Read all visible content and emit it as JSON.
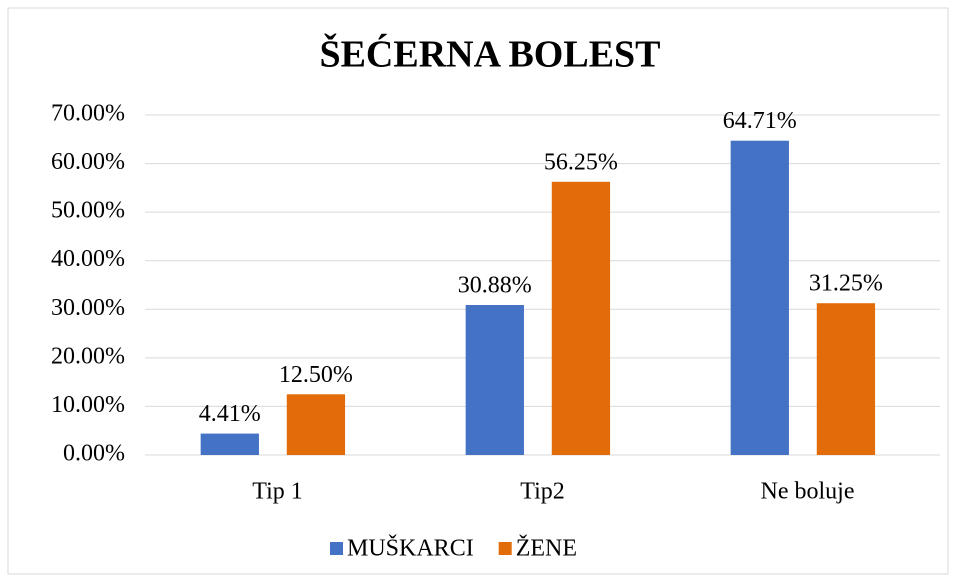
{
  "chart_data": {
    "type": "bar",
    "title": "ŠEĆERNA BOLEST",
    "categories": [
      "Tip 1",
      "Tip2",
      "Ne boluje"
    ],
    "series": [
      {
        "name": "MUŠKARCI",
        "color": "#4472c4",
        "values": [
          4.41,
          30.88,
          64.71
        ],
        "value_labels": [
          "4.41%",
          "30.88%",
          "64.71%"
        ]
      },
      {
        "name": "ŽENE",
        "color": "#e36c0a",
        "values": [
          12.5,
          56.25,
          31.25
        ],
        "value_labels": [
          "12.50%",
          "56.25%",
          "31.25%"
        ]
      }
    ],
    "ylim": [
      0,
      70
    ],
    "yticks": [
      {
        "value": 0,
        "label": "0.00%"
      },
      {
        "value": 10,
        "label": "10.00%"
      },
      {
        "value": 20,
        "label": "20.00%"
      },
      {
        "value": 30,
        "label": "30.00%"
      },
      {
        "value": 40,
        "label": "40.00%"
      },
      {
        "value": 50,
        "label": "50.00%"
      },
      {
        "value": 60,
        "label": "60.00%"
      },
      {
        "value": 70,
        "label": "70.00%"
      }
    ],
    "grid": true,
    "legend": "bottom"
  }
}
